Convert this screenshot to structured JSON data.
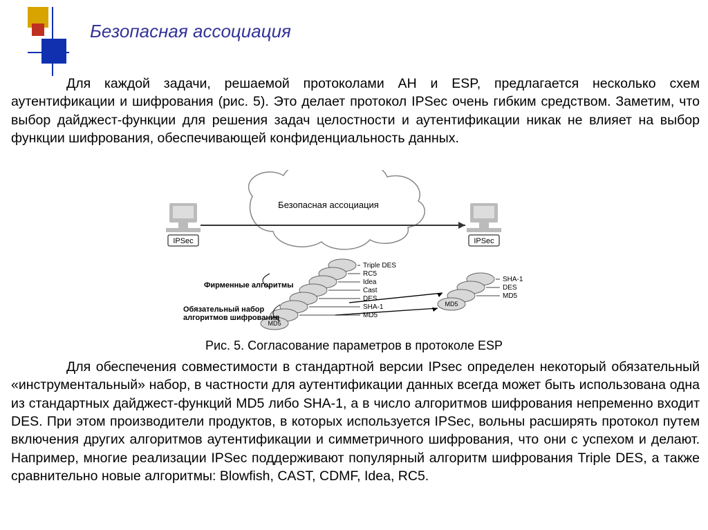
{
  "title": "Безопасная ассоциация",
  "paragraph1": "Для каждой задачи, решаемой протоколами AH и ESP, предлагается несколько схем аутентификации и шифрования (рис. 5). Это делает протокол IPSec очень гибким средством. Заметим, что выбор дайджест-функции для решения задач целостности и аутентификации никак не влияет на выбор функции шифрования, обеспечивающей конфиденциальность данных.",
  "caption": "Рис. 5. Согласование параметров в протоколе ESP",
  "paragraph2": "Для обеспечения совместимости в стандартной версии IPsec определен некоторый обязательный «инструментальный» набор, в частности для аутентификации данных всегда может быть использована одна из стандартных дайджест-функций MD5 либо SHA-1, а в число алгоритмов шифрования непременно входит DES. При этом производители продуктов, в которых используется IPSec, вольны расширять протокол путем включения других алгоритмов аутентификации и симметричного шифрования, что они с успехом и делают. Например, многие реализации IPSec поддерживают популярный алгоритм шифрования Triple DES, а также сравнительно новые алгоритмы: Blowfish, CAST, CDMF, Idea, RC5.",
  "diagram": {
    "cloud_label": "Безопасная ассоциация",
    "endpoint_label": "IPSec",
    "stack_labels": [
      "Triple DES",
      "RC5",
      "Idea",
      "Cast",
      "DES",
      "SHA-1",
      "MD5"
    ],
    "right_stack_labels": [
      "SHA-1",
      "DES",
      "MD5"
    ],
    "side_labels": {
      "top": "Фирменные алгоритмы",
      "bottom": "Обязательный набор алгоритмов шифрования"
    },
    "colors": {
      "cloud_stroke": "#888888",
      "arrow": "#333333",
      "computer_body": "#bbbbbb",
      "computer_screen": "#dddddd",
      "box_fill": "#ffffff",
      "box_stroke": "#000000",
      "stack_fill": "#d8d8d8",
      "stack_stroke": "#666666",
      "text": "#000000"
    },
    "font_size_small": 10,
    "font_size_label": 11,
    "font_size_cloud": 13
  },
  "logo": {
    "yellow": "#d8a400",
    "red": "#c03020",
    "blue": "#1030b0",
    "line": "#1030b0"
  }
}
